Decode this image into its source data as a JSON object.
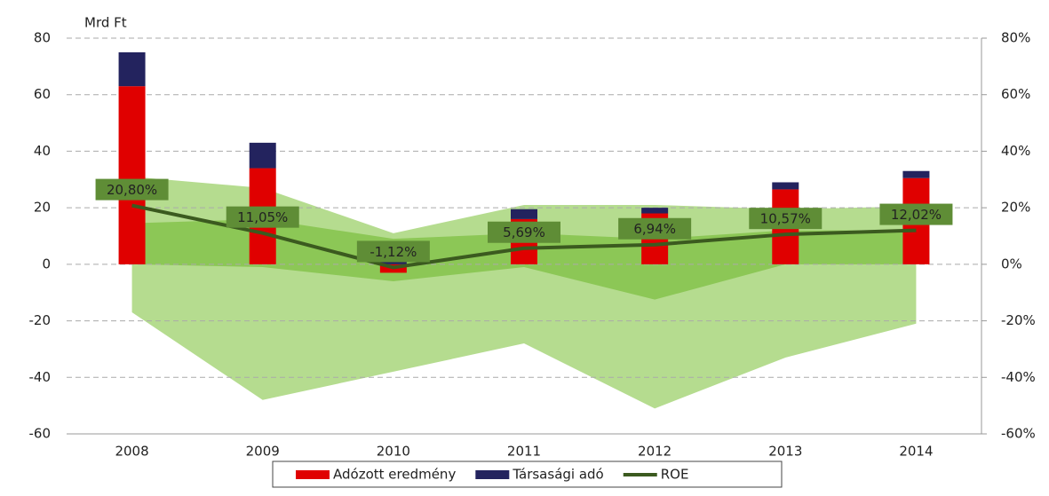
{
  "chart_data": {
    "type": "bar",
    "unit_label": "Mrd Ft",
    "categories": [
      "2008",
      "2009",
      "2010",
      "2011",
      "2012",
      "2013",
      "2014"
    ],
    "series": [
      {
        "name": "Adózott eredmény",
        "color": "#e00000",
        "values": [
          63,
          34,
          -3,
          16,
          18,
          26.5,
          30.5
        ]
      },
      {
        "name": "Társasági adó",
        "color": "#23235e",
        "values": [
          12,
          9,
          1.5,
          3.5,
          2,
          2.5,
          2.5
        ]
      },
      {
        "name": "ROE",
        "type": "line",
        "axis": "y2",
        "color": "#3b5a1f",
        "values": [
          20.8,
          11.05,
          -1.12,
          5.69,
          6.94,
          10.57,
          12.02
        ],
        "value_labels": [
          "20,80%",
          "11,05%",
          "-1,12%",
          "5,69%",
          "6,94%",
          "10,57%",
          "12,02%"
        ],
        "label_color": "#5f8d36"
      }
    ],
    "bands": [
      {
        "axis": "y2",
        "color": "#b5dc8f",
        "upper": [
          31,
          27,
          11,
          21,
          21,
          19.5,
          20.5
        ],
        "lower": [
          -17,
          -48,
          -38,
          -28,
          -51,
          -33,
          -21
        ]
      },
      {
        "axis": "y2",
        "color": "#8cc756",
        "upper": [
          14.5,
          16,
          9,
          11,
          9,
          12,
          12
        ],
        "lower": [
          0,
          -1,
          -6,
          -1,
          -12.5,
          0,
          0
        ]
      }
    ],
    "ylim": [
      -60,
      80
    ],
    "yticks": [
      -60,
      -40,
      -20,
      0,
      20,
      40,
      60,
      80
    ],
    "y2lim": [
      -60,
      80
    ],
    "y2ticks": [
      {
        "value": -60,
        "label": "-60%"
      },
      {
        "value": -40,
        "label": "-40%"
      },
      {
        "value": -20,
        "label": "-20%"
      },
      {
        "value": 0,
        "label": "0%"
      },
      {
        "value": 20,
        "label": "20%"
      },
      {
        "value": 40,
        "label": "40%"
      },
      {
        "value": 60,
        "label": "60%"
      },
      {
        "value": 80,
        "label": "80%"
      }
    ],
    "grid": true,
    "legend": "bottom"
  }
}
